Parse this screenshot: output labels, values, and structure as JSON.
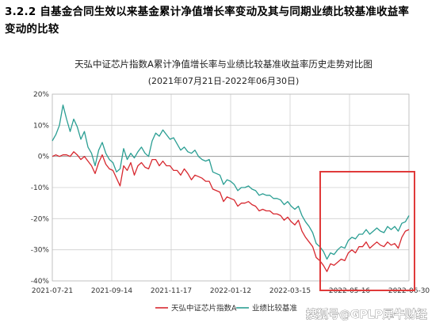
{
  "heading": {
    "line1": "3.2.2 自基金合同生效以来基金累计净值增长率变动及其与同期业绩比较基准收益率",
    "line2": "变动的比较"
  },
  "chart_data": {
    "type": "line",
    "title": "天弘中证芯片指数A累计净值增长率与业绩比较基准收益率历史走势对比图",
    "subtitle": "(2021年07月21日-2022年06月30日)",
    "x_ticks": [
      "2021-07-21",
      "2021-09-14",
      "2021-11-17",
      "2022-01-12",
      "2022-03-15",
      "2022-05-16",
      "2022-06-30"
    ],
    "y_ticks": [
      "20%",
      "10%",
      "0%",
      "-10%",
      "-20%",
      "-30%",
      "-40%"
    ],
    "ylim": [
      -40,
      20
    ],
    "grid": true,
    "legend_position": "bottom",
    "series": [
      {
        "name": "天弘中证芯片指数A",
        "color": "#d7282f",
        "x": [
          0,
          0.01,
          0.02,
          0.03,
          0.04,
          0.05,
          0.06,
          0.07,
          0.08,
          0.09,
          0.1,
          0.11,
          0.12,
          0.13,
          0.14,
          0.15,
          0.16,
          0.17,
          0.18,
          0.19,
          0.2,
          0.21,
          0.22,
          0.23,
          0.24,
          0.25,
          0.26,
          0.27,
          0.28,
          0.29,
          0.3,
          0.31,
          0.32,
          0.33,
          0.34,
          0.35,
          0.36,
          0.37,
          0.38,
          0.39,
          0.4,
          0.41,
          0.42,
          0.43,
          0.44,
          0.45,
          0.46,
          0.47,
          0.48,
          0.49,
          0.5,
          0.51,
          0.52,
          0.53,
          0.54,
          0.55,
          0.56,
          0.57,
          0.58,
          0.59,
          0.6,
          0.61,
          0.62,
          0.63,
          0.64,
          0.65,
          0.66,
          0.67,
          0.68,
          0.69,
          0.7,
          0.71,
          0.72,
          0.73,
          0.74,
          0.75,
          0.76,
          0.77,
          0.78,
          0.79,
          0.8,
          0.81,
          0.82,
          0.83,
          0.84,
          0.85,
          0.86,
          0.87,
          0.88,
          0.89,
          0.9,
          0.91,
          0.92,
          0.93,
          0.94,
          0.95,
          0.96,
          0.97,
          0.98,
          0.99,
          1.0
        ],
        "values": [
          0,
          0.5,
          0,
          0.5,
          0.5,
          0,
          1.5,
          0.5,
          -1,
          0,
          -1.5,
          -3,
          -5.5,
          -2,
          0.5,
          -2.5,
          -4,
          -4.5,
          -7,
          -9.5,
          -3,
          -4.5,
          -2,
          -6,
          -3,
          -2,
          -3.5,
          -4,
          -1,
          -1,
          -3,
          -1.5,
          -3,
          -3,
          -4.5,
          -4.5,
          -6,
          -4,
          -5.5,
          -7.5,
          -6,
          -6.5,
          -7,
          -8,
          -8,
          -10.5,
          -11,
          -11.5,
          -14.5,
          -13,
          -13.5,
          -14,
          -16,
          -15,
          -15,
          -14.5,
          -15.5,
          -16,
          -17.5,
          -17,
          -17.5,
          -17.5,
          -18.5,
          -18.5,
          -19,
          -20.5,
          -19.5,
          -21,
          -22,
          -20.5,
          -24,
          -26,
          -27.5,
          -29,
          -32.5,
          -33.5,
          -35,
          -37,
          -34.5,
          -35,
          -34,
          -33,
          -33.5,
          -31,
          -30,
          -31,
          -29,
          -29,
          -27.5,
          -29.5,
          -28.5,
          -27.5,
          -28.5,
          -29,
          -27.5,
          -28.5,
          -28,
          -29.5,
          -26,
          -24,
          -23.5
        ]
      },
      {
        "name": "业绩比较基准",
        "color": "#2a9e93",
        "x": [
          0,
          0.01,
          0.02,
          0.03,
          0.04,
          0.05,
          0.06,
          0.07,
          0.08,
          0.09,
          0.1,
          0.11,
          0.12,
          0.13,
          0.14,
          0.15,
          0.16,
          0.17,
          0.18,
          0.19,
          0.2,
          0.21,
          0.22,
          0.23,
          0.24,
          0.25,
          0.26,
          0.27,
          0.28,
          0.29,
          0.3,
          0.31,
          0.32,
          0.33,
          0.34,
          0.35,
          0.36,
          0.37,
          0.38,
          0.39,
          0.4,
          0.41,
          0.42,
          0.43,
          0.44,
          0.45,
          0.46,
          0.47,
          0.48,
          0.49,
          0.5,
          0.51,
          0.52,
          0.53,
          0.54,
          0.55,
          0.56,
          0.57,
          0.58,
          0.59,
          0.6,
          0.61,
          0.62,
          0.63,
          0.64,
          0.65,
          0.66,
          0.67,
          0.68,
          0.69,
          0.7,
          0.71,
          0.72,
          0.73,
          0.74,
          0.75,
          0.76,
          0.77,
          0.78,
          0.79,
          0.8,
          0.81,
          0.82,
          0.83,
          0.84,
          0.85,
          0.86,
          0.87,
          0.88,
          0.89,
          0.9,
          0.91,
          0.92,
          0.93,
          0.94,
          0.95,
          0.96,
          0.97,
          0.98,
          0.99,
          1.0
        ],
        "values": [
          5,
          7,
          10,
          16.5,
          12,
          8,
          12,
          9.5,
          5.5,
          8,
          3,
          1,
          -3,
          2,
          4.5,
          1,
          -1,
          -2,
          -5,
          -4,
          2.5,
          -1,
          1,
          -0.5,
          1.5,
          3,
          1,
          0,
          5,
          7.5,
          6.5,
          8.5,
          7,
          5.5,
          6,
          4,
          2,
          3,
          1.5,
          1,
          2,
          0,
          -1,
          -1.5,
          -1,
          -5,
          -5.5,
          -6,
          -9,
          -7.5,
          -8,
          -9,
          -11,
          -10,
          -10,
          -9.5,
          -10.5,
          -11,
          -12.5,
          -12,
          -12.5,
          -12.5,
          -13.5,
          -13.5,
          -14,
          -15.5,
          -14.5,
          -16,
          -17,
          -16,
          -19,
          -21,
          -22.5,
          -24.5,
          -28,
          -29,
          -30.5,
          -33,
          -31,
          -31.5,
          -30,
          -29,
          -29.5,
          -27,
          -26,
          -26.5,
          -25,
          -25,
          -23.5,
          -25,
          -24,
          -23,
          -24,
          -24.5,
          -22.5,
          -23.5,
          -22.5,
          -24,
          -21.5,
          -21,
          -19
        ]
      }
    ]
  },
  "legend": [
    {
      "label": "天弘中证芯片指数A",
      "color": "#d7282f"
    },
    {
      "label": "业绩比较基准",
      "color": "#2a9e93"
    }
  ],
  "highlight_box": {
    "color": "#e03a3a"
  },
  "watermark": {
    "text": "搜狐号@GPLP犀牛财经"
  }
}
